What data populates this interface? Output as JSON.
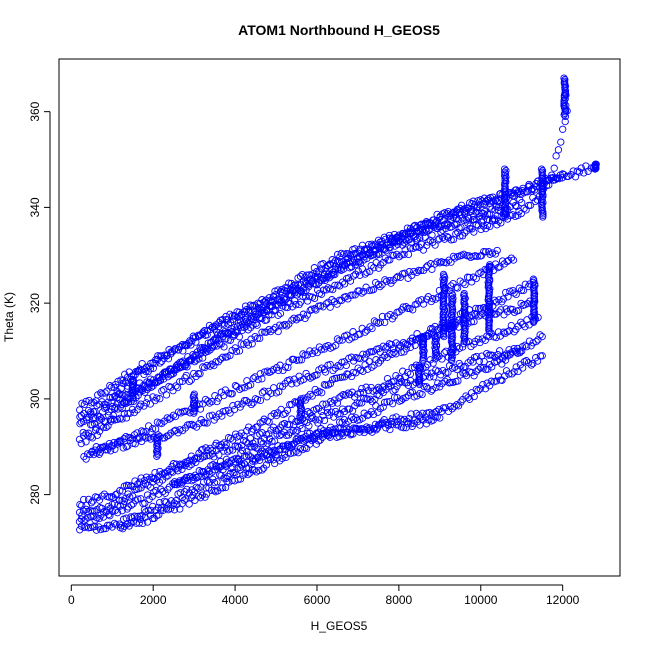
{
  "chart_data": {
    "type": "scatter",
    "title": "ATOM1 Northbound H_GEOS5",
    "xlabel": "H_GEOS5",
    "ylabel": "Theta (K)",
    "xlim": [
      -300,
      13400
    ],
    "ylim": [
      263,
      371
    ],
    "x_ticks": [
      0,
      2000,
      4000,
      6000,
      8000,
      10000,
      12000
    ],
    "y_ticks": [
      280,
      300,
      320,
      340,
      360
    ],
    "x_tick_labels": [
      "0",
      "2000",
      "4000",
      "6000",
      "8000",
      "10000",
      "12000"
    ],
    "y_tick_labels": [
      "280",
      "300",
      "320",
      "340",
      "360"
    ],
    "grid": false,
    "marker": "open-circle",
    "color": "#0000ff",
    "series": [
      {
        "points": [
          [
            200,
            298
          ],
          [
            600,
            300
          ],
          [
            1200,
            304
          ],
          [
            2000,
            308
          ],
          [
            3000,
            312
          ],
          [
            4000,
            317
          ],
          [
            5000,
            321
          ],
          [
            6000,
            326
          ],
          [
            7000,
            330
          ],
          [
            8000,
            334
          ],
          [
            9000,
            338
          ],
          [
            10000,
            341
          ],
          [
            10800,
            343
          ],
          [
            11500,
            345
          ],
          [
            12300,
            347
          ],
          [
            12800,
            349
          ]
        ]
      },
      {
        "points": [
          [
            200,
            295
          ],
          [
            700,
            297
          ],
          [
            1500,
            301
          ],
          [
            2500,
            306
          ],
          [
            3500,
            312
          ],
          [
            4500,
            317
          ],
          [
            5500,
            322
          ],
          [
            6500,
            327
          ],
          [
            7500,
            331
          ],
          [
            8500,
            335
          ],
          [
            9500,
            338
          ],
          [
            10500,
            340
          ],
          [
            11000,
            341
          ]
        ]
      },
      {
        "points": [
          [
            200,
            296
          ],
          [
            800,
            299
          ],
          [
            1600,
            305
          ],
          [
            2600,
            310
          ],
          [
            3600,
            316
          ],
          [
            4600,
            320
          ],
          [
            5600,
            325
          ],
          [
            6600,
            330
          ],
          [
            7600,
            333
          ],
          [
            8600,
            336
          ],
          [
            9600,
            340
          ],
          [
            10400,
            342
          ],
          [
            11200,
            344
          ],
          [
            12000,
            347
          ]
        ]
      },
      {
        "points": [
          [
            300,
            293
          ],
          [
            900,
            296
          ],
          [
            1800,
            302
          ],
          [
            2800,
            308
          ],
          [
            3800,
            314
          ],
          [
            4800,
            319
          ],
          [
            5800,
            324
          ],
          [
            6800,
            328
          ],
          [
            7800,
            332
          ],
          [
            8800,
            335
          ],
          [
            9800,
            337
          ],
          [
            10600,
            339
          ]
        ]
      },
      {
        "points": [
          [
            200,
            291
          ],
          [
            800,
            294
          ],
          [
            1600,
            298
          ],
          [
            2600,
            303
          ],
          [
            3600,
            308
          ],
          [
            4600,
            313
          ],
          [
            5600,
            317
          ],
          [
            6600,
            321
          ],
          [
            7600,
            324
          ],
          [
            8600,
            327
          ],
          [
            9600,
            330
          ],
          [
            10400,
            331
          ]
        ]
      },
      {
        "points": [
          [
            300,
            288
          ],
          [
            1000,
            290
          ],
          [
            2000,
            294
          ],
          [
            3000,
            298
          ],
          [
            4000,
            302
          ],
          [
            5000,
            306
          ],
          [
            6000,
            310
          ],
          [
            7000,
            314
          ],
          [
            8000,
            318
          ],
          [
            9000,
            322
          ],
          [
            10000,
            326
          ],
          [
            10800,
            329
          ]
        ]
      },
      {
        "points": [
          [
            200,
            278
          ],
          [
            700,
            279
          ],
          [
            1500,
            282
          ],
          [
            2500,
            286
          ],
          [
            3500,
            290
          ],
          [
            4500,
            294
          ],
          [
            5500,
            299
          ],
          [
            6500,
            304
          ],
          [
            7500,
            308
          ],
          [
            8500,
            312
          ],
          [
            9500,
            316
          ],
          [
            10500,
            318
          ],
          [
            11300,
            320
          ]
        ]
      },
      {
        "points": [
          [
            200,
            276
          ],
          [
            800,
            277
          ],
          [
            1600,
            281
          ],
          [
            2600,
            285
          ],
          [
            3600,
            289
          ],
          [
            4600,
            292
          ],
          [
            5600,
            296
          ],
          [
            6600,
            300
          ],
          [
            7600,
            303
          ],
          [
            8600,
            307
          ],
          [
            9600,
            311
          ],
          [
            10600,
            314
          ],
          [
            11400,
            317
          ]
        ]
      },
      {
        "points": [
          [
            200,
            274
          ],
          [
            900,
            276
          ],
          [
            1800,
            279
          ],
          [
            2800,
            283
          ],
          [
            3800,
            287
          ],
          [
            4800,
            291
          ],
          [
            5800,
            295
          ],
          [
            6800,
            298
          ],
          [
            7800,
            302
          ],
          [
            8800,
            305
          ],
          [
            9800,
            308
          ],
          [
            10800,
            310
          ],
          [
            11500,
            313
          ]
        ]
      },
      {
        "points": [
          [
            200,
            273
          ],
          [
            1000,
            273
          ],
          [
            2000,
            277
          ],
          [
            3000,
            281
          ],
          [
            4000,
            285
          ],
          [
            5000,
            289
          ],
          [
            6000,
            293
          ],
          [
            7000,
            296
          ],
          [
            8000,
            300
          ],
          [
            9000,
            303
          ],
          [
            10000,
            306
          ],
          [
            11000,
            310
          ]
        ]
      },
      {
        "points": [
          [
            1200,
            273
          ],
          [
            2200,
            276
          ],
          [
            3200,
            280
          ],
          [
            4200,
            284
          ],
          [
            5200,
            288
          ],
          [
            6200,
            292
          ],
          [
            7200,
            294
          ],
          [
            8200,
            296
          ],
          [
            9200,
            298
          ],
          [
            10000,
            302
          ],
          [
            10800,
            306
          ],
          [
            11500,
            309
          ]
        ]
      },
      {
        "points": [
          [
            2500,
            282
          ],
          [
            3500,
            285
          ],
          [
            4500,
            288
          ],
          [
            5500,
            291
          ],
          [
            6500,
            293
          ],
          [
            7500,
            294
          ],
          [
            8500,
            295
          ],
          [
            9000,
            296
          ]
        ]
      },
      {
        "points": [
          [
            1000,
            300
          ],
          [
            2000,
            304
          ],
          [
            3000,
            308
          ],
          [
            4000,
            313
          ],
          [
            5000,
            318
          ],
          [
            6000,
            322
          ],
          [
            7000,
            326
          ],
          [
            8000,
            330
          ],
          [
            9000,
            333
          ],
          [
            10000,
            336
          ],
          [
            11000,
            339
          ],
          [
            11600,
            344
          ],
          [
            11900,
            352
          ],
          [
            12100,
            360
          ],
          [
            12050,
            366
          ]
        ]
      },
      {
        "points": [
          [
            500,
            289
          ],
          [
            1500,
            291
          ],
          [
            2500,
            293
          ],
          [
            3500,
            296
          ],
          [
            4500,
            300
          ],
          [
            5500,
            304
          ],
          [
            6500,
            307
          ],
          [
            7500,
            310
          ],
          [
            8500,
            313
          ],
          [
            9500,
            317
          ],
          [
            10500,
            321
          ],
          [
            11200,
            324
          ]
        ]
      }
    ],
    "vertical_clusters": [
      {
        "x": 1500,
        "y_range": [
          300,
          304
        ]
      },
      {
        "x": 2100,
        "y_range": [
          288,
          292
        ]
      },
      {
        "x": 3000,
        "y_range": [
          297,
          301
        ]
      },
      {
        "x": 5600,
        "y_range": [
          296,
          300
        ]
      },
      {
        "x": 8500,
        "y_range": [
          303,
          307
        ]
      },
      {
        "x": 8600,
        "y_range": [
          308,
          313
        ]
      },
      {
        "x": 8900,
        "y_range": [
          309,
          313
        ]
      },
      {
        "x": 9100,
        "y_range": [
          313,
          326
        ]
      },
      {
        "x": 9300,
        "y_range": [
          308,
          322
        ]
      },
      {
        "x": 9600,
        "y_range": [
          312,
          322
        ]
      },
      {
        "x": 10200,
        "y_range": [
          314,
          328
        ]
      },
      {
        "x": 10600,
        "y_range": [
          338,
          348
        ]
      },
      {
        "x": 11300,
        "y_range": [
          316,
          325
        ]
      },
      {
        "x": 11500,
        "y_range": [
          338,
          348
        ]
      },
      {
        "x": 12050,
        "y_range": [
          359,
          367
        ]
      },
      {
        "x": 12800,
        "y_range": [
          348,
          349
        ]
      }
    ]
  }
}
